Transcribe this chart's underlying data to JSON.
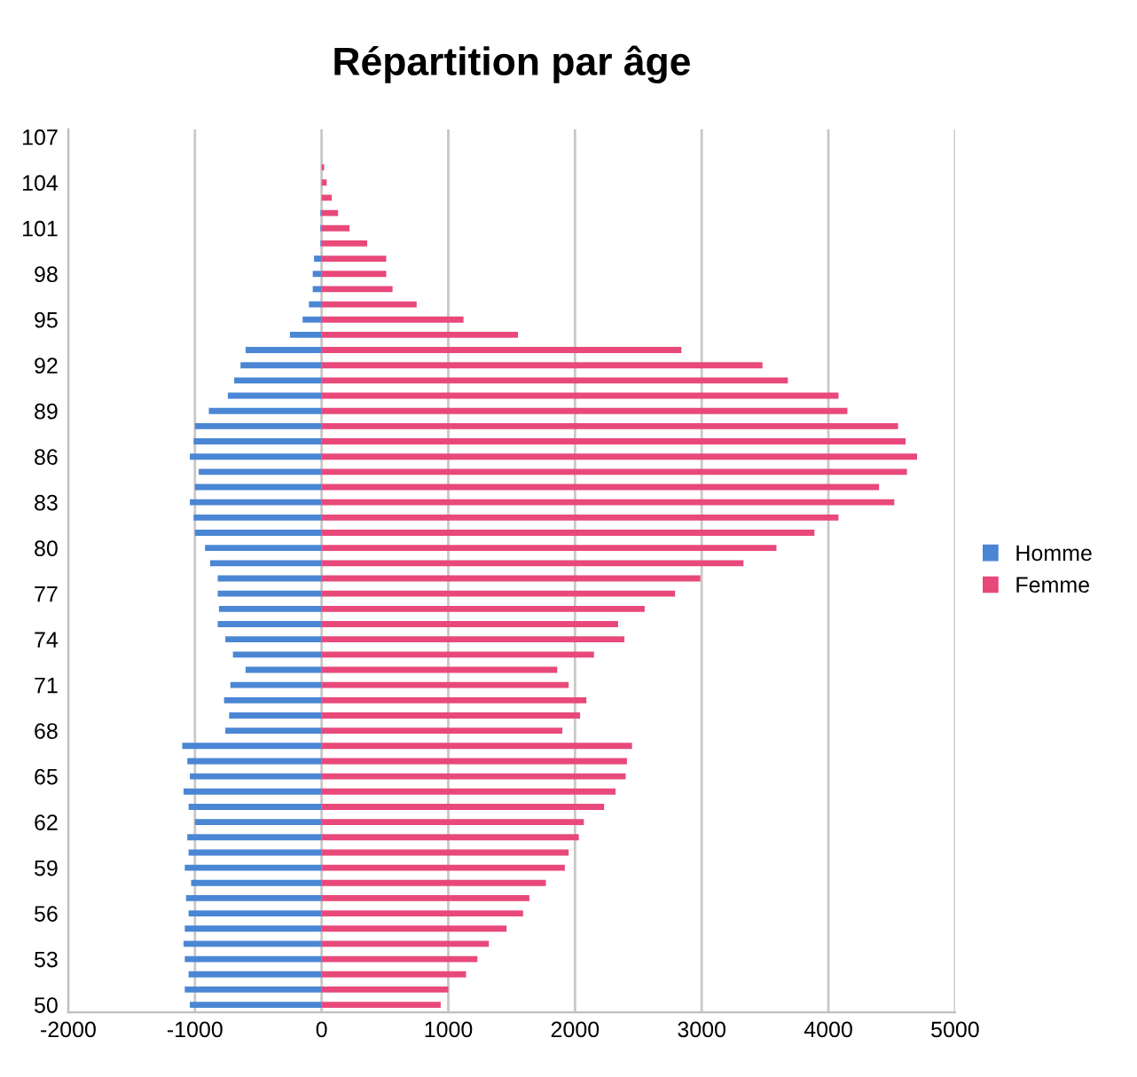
{
  "chart_data": {
    "type": "bar",
    "orientation": "horizontal",
    "stacked": true,
    "title": "Répartition par âge",
    "categories": [
      "107",
      null,
      null,
      "104",
      null,
      null,
      "101",
      null,
      null,
      "98",
      null,
      null,
      "95",
      null,
      null,
      "92",
      null,
      null,
      "89",
      null,
      null,
      "86",
      null,
      null,
      "83",
      null,
      null,
      "80",
      null,
      null,
      "77",
      null,
      null,
      "74",
      null,
      null,
      "71",
      null,
      null,
      "68",
      null,
      null,
      "65",
      null,
      null,
      "62",
      null,
      null,
      "59",
      null,
      null,
      "56",
      null,
      null,
      "53",
      null,
      null,
      "50"
    ],
    "series": [
      {
        "name": "Homme",
        "color": "#4a86d4",
        "values": [
          0,
          0,
          0,
          0,
          0,
          -10,
          -10,
          -10,
          -60,
          -70,
          -70,
          -100,
          -150,
          -250,
          -600,
          -640,
          -690,
          -740,
          -890,
          -1000,
          -1010,
          -1040,
          -970,
          -1000,
          -1040,
          -1010,
          -1000,
          -920,
          -880,
          -820,
          -820,
          -810,
          -820,
          -760,
          -700,
          -600,
          -720,
          -770,
          -730,
          -760,
          -1100,
          -1060,
          -1040,
          -1090,
          -1050,
          -1000,
          -1060,
          -1050,
          -1080,
          -1030,
          -1070,
          -1050,
          -1080,
          -1090,
          -1080,
          -1050,
          -1080,
          -1040
        ]
      },
      {
        "name": "Femme",
        "color": "#e8497a",
        "values": [
          0,
          0,
          20,
          40,
          80,
          130,
          220,
          360,
          510,
          510,
          560,
          750,
          1120,
          1550,
          2840,
          3480,
          3680,
          4080,
          4150,
          4550,
          4610,
          4700,
          4620,
          4400,
          4520,
          4080,
          3890,
          3590,
          3330,
          2990,
          2790,
          2550,
          2340,
          2390,
          2150,
          1860,
          1950,
          2090,
          2040,
          1900,
          2450,
          2410,
          2400,
          2320,
          2230,
          2070,
          2030,
          1950,
          1920,
          1770,
          1640,
          1590,
          1460,
          1320,
          1230,
          1140,
          1000,
          940
        ]
      }
    ],
    "xlim": [
      -2000,
      5000
    ],
    "xticks": [
      -2000,
      -1000,
      0,
      1000,
      2000,
      3000,
      4000,
      5000
    ],
    "grid": "x",
    "legend": "right"
  }
}
